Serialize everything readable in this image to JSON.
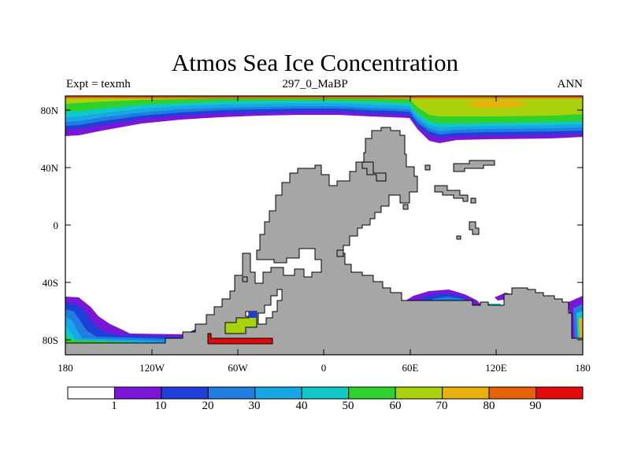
{
  "title": "Atmos Sea Ice Concentration",
  "subtitle_left": "Expt = texmh",
  "subtitle_center": "297_0_MaBP",
  "subtitle_right": "ANN",
  "axes": {
    "lat_ticks": [
      "80N",
      "40N",
      "0",
      "40S",
      "80S"
    ],
    "lon_ticks": [
      "180",
      "120W",
      "60W",
      "0",
      "60E",
      "120E",
      "180"
    ]
  },
  "colorbar": {
    "labels": [
      "1",
      "10",
      "20",
      "30",
      "40",
      "50",
      "60",
      "70",
      "80",
      "90"
    ],
    "colors": [
      "#ffffff",
      "#7b16d9",
      "#1f3fd9",
      "#1f7fe0",
      "#17a7e6",
      "#10c9c6",
      "#2fd12a",
      "#a8d20c",
      "#e8b20a",
      "#e86008",
      "#e20a0a"
    ]
  },
  "colors": {
    "land": "#a6a6a6"
  }
}
